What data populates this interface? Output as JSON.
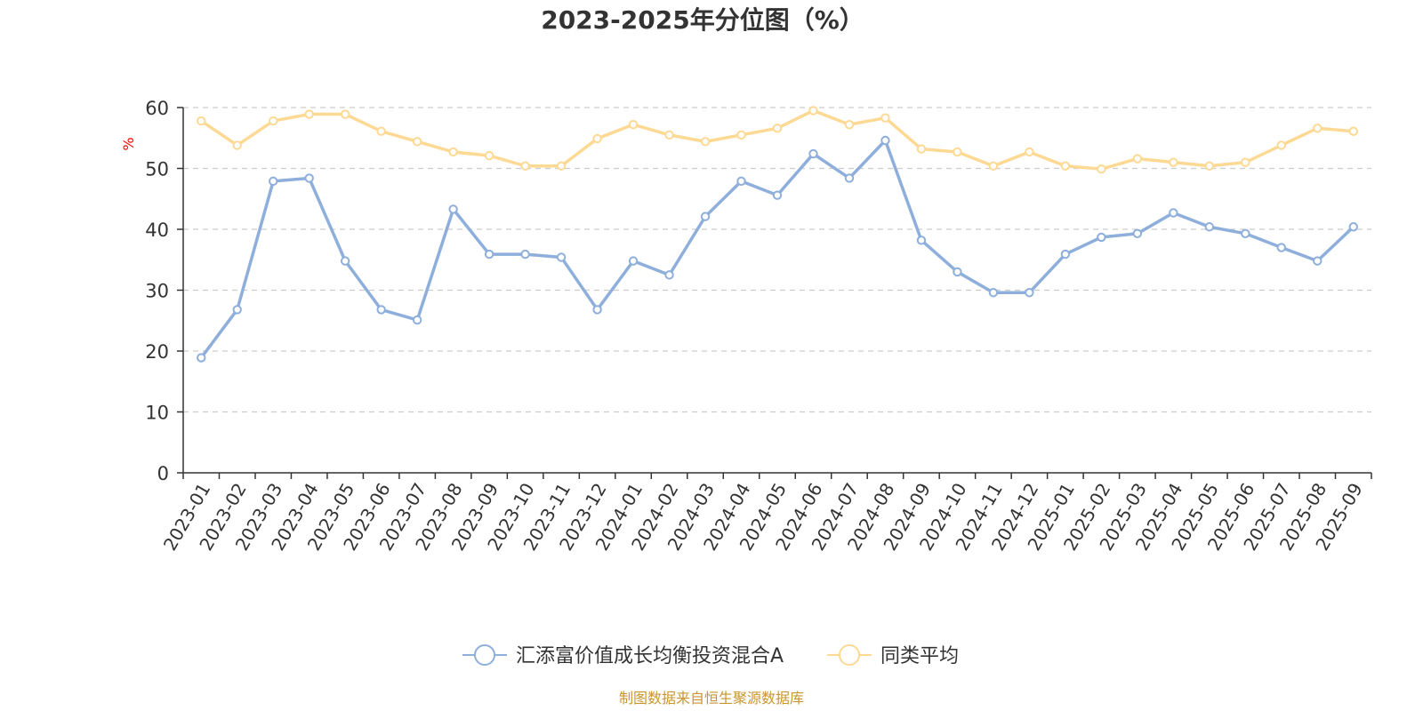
{
  "chart_data": {
    "type": "line",
    "title": "2023-2025年分位图（%）",
    "ylabel": "%",
    "xlabel": "",
    "ylim": [
      0,
      60
    ],
    "yticks": [
      0,
      10,
      20,
      30,
      40,
      50,
      60
    ],
    "grid": "horizontal-dashed",
    "legend_position": "bottom-center",
    "categories": [
      "2023-01",
      "2023-02",
      "2023-03",
      "2023-04",
      "2023-05",
      "2023-06",
      "2023-07",
      "2023-08",
      "2023-09",
      "2023-10",
      "2023-11",
      "2023-12",
      "2024-01",
      "2024-02",
      "2024-03",
      "2024-04",
      "2024-05",
      "2024-06",
      "2024-07",
      "2024-08",
      "2024-09",
      "2024-10",
      "2024-11",
      "2024-12",
      "2025-01",
      "2025-02",
      "2025-03",
      "2025-04",
      "2025-05",
      "2025-06",
      "2025-07",
      "2025-08",
      "2025-09"
    ],
    "series": [
      {
        "name": "汇添富价值成长均衡投资混合A",
        "color": "#8eaedb",
        "values": [
          18.9,
          26.8,
          47.9,
          48.4,
          34.8,
          26.8,
          25.1,
          43.3,
          35.9,
          35.9,
          35.4,
          26.8,
          34.8,
          32.5,
          42.1,
          47.9,
          45.6,
          52.4,
          48.4,
          54.6,
          38.2,
          33.0,
          29.6,
          29.6,
          35.9,
          38.7,
          39.3,
          42.7,
          40.4,
          39.3,
          37.0,
          34.8,
          40.4
        ]
      },
      {
        "name": "同类平均",
        "color": "#fdd993",
        "values": [
          57.8,
          53.8,
          57.8,
          58.9,
          58.9,
          56.1,
          54.4,
          52.7,
          52.1,
          50.4,
          50.4,
          54.9,
          57.2,
          55.5,
          54.4,
          55.5,
          56.6,
          59.5,
          57.2,
          58.3,
          53.2,
          52.7,
          50.4,
          52.7,
          50.4,
          49.9,
          51.6,
          51.0,
          50.4,
          51.0,
          53.8,
          56.6,
          56.1
        ]
      }
    ],
    "source": "制图数据来自恒生聚源数据库",
    "source_color": "#c8962e",
    "ylabel_color": "#ff0000",
    "axis_color": "#333333",
    "grid_color": "#cccccc"
  }
}
